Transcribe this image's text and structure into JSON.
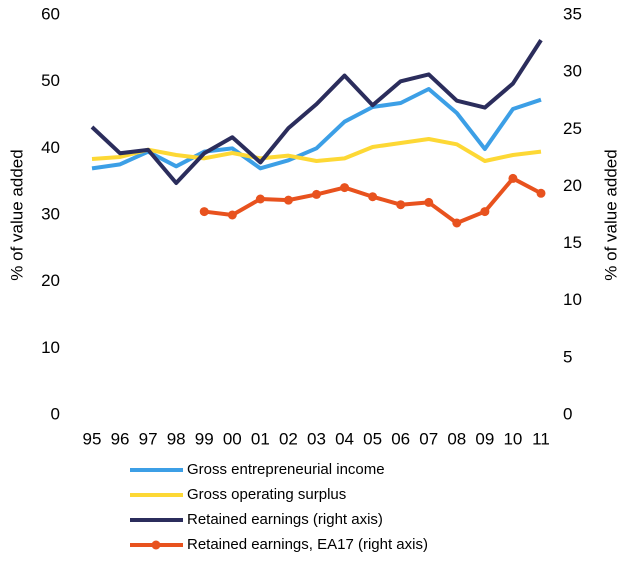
{
  "chart_data": {
    "type": "line",
    "y_label": "% of value added",
    "y2_label": "% of value added",
    "categories": [
      "95",
      "96",
      "97",
      "98",
      "99",
      "00",
      "01",
      "02",
      "03",
      "04",
      "05",
      "06",
      "07",
      "08",
      "09",
      "10",
      "11"
    ],
    "ylim": [
      0,
      60
    ],
    "yticks": [
      0,
      10,
      20,
      30,
      40,
      50,
      60
    ],
    "y2lim": [
      0,
      35
    ],
    "y2ticks": [
      0,
      5,
      10,
      15,
      20,
      25,
      30,
      35
    ],
    "grid": false,
    "series": [
      {
        "name": "Gross entrepreneurial income",
        "color": "#3c9fe6",
        "values": [
          37.0,
          37.6,
          39.5,
          37.3,
          39.5,
          40.0,
          37.0,
          38.2,
          40.0,
          44.0,
          46.2,
          46.8,
          48.9,
          45.3,
          39.9,
          45.9,
          47.3
        ]
      },
      {
        "name": "Gross operating surplus",
        "color": "#fdd835",
        "values": [
          38.4,
          38.7,
          39.8,
          39.0,
          38.5,
          39.3,
          38.5,
          38.9,
          38.1,
          38.5,
          40.2,
          40.8,
          41.4,
          40.6,
          38.1,
          39.0,
          39.5
        ]
      },
      {
        "name": "Retained earnings (right axis)",
        "color": "#2b2d5c",
        "axis": "y2",
        "values": [
          25.2,
          22.9,
          23.2,
          20.3,
          22.9,
          24.3,
          22.1,
          25.1,
          27.2,
          29.7,
          27.1,
          29.2,
          29.8,
          27.5,
          26.9,
          29.0,
          32.8
        ]
      },
      {
        "name": "Retained earnings, EA17 (right axis)",
        "color": "#e8521e",
        "axis": "y2",
        "marker": true,
        "values": [
          null,
          null,
          null,
          null,
          17.8,
          17.5,
          18.9,
          18.8,
          19.3,
          19.9,
          19.1,
          18.4,
          18.6,
          16.8,
          17.8,
          20.7,
          19.4
        ]
      }
    ]
  }
}
